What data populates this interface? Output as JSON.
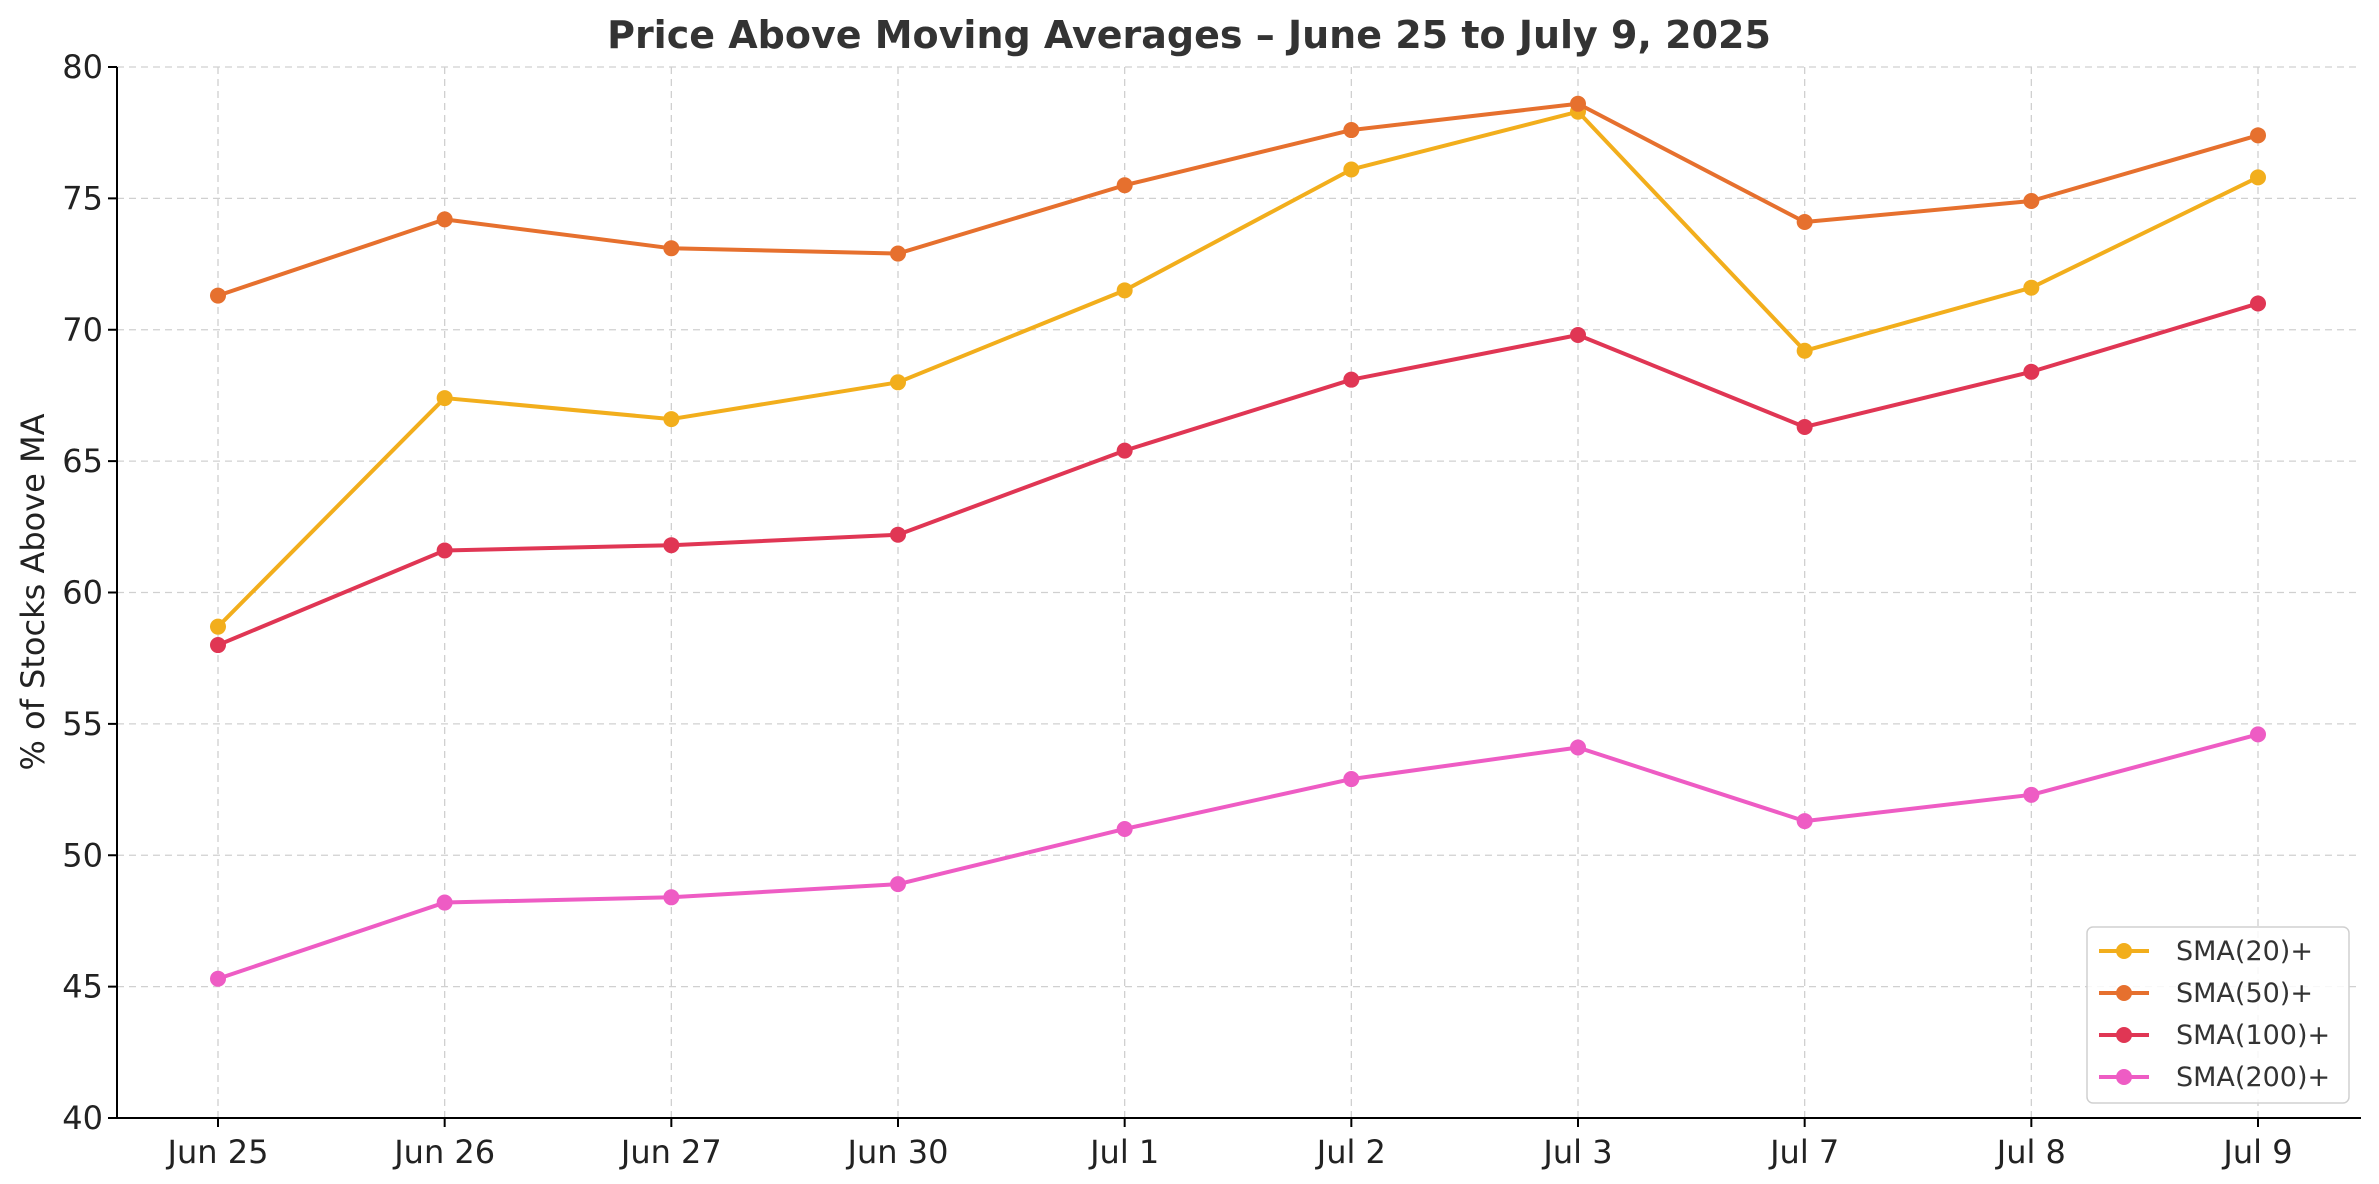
{
  "chart_data": {
    "type": "line",
    "title": "Price Above Moving Averages – June 25 to July 9, 2025",
    "xlabel": "",
    "ylabel": "% of Stocks Above MA",
    "categories": [
      "Jun 25",
      "Jun 26",
      "Jun 27",
      "Jun 30",
      "Jul 1",
      "Jul 2",
      "Jul 3",
      "Jul 7",
      "Jul 8",
      "Jul 9"
    ],
    "ylim": [
      40,
      80
    ],
    "yticks": [
      40,
      45,
      50,
      55,
      60,
      65,
      70,
      75,
      80
    ],
    "grid": true,
    "legend_position": "bottom-right",
    "series": [
      {
        "name": "SMA(20)+",
        "color": "#f2ae1c",
        "values": [
          58.7,
          67.4,
          66.6,
          68.0,
          71.5,
          76.1,
          78.3,
          69.2,
          71.6,
          75.8
        ]
      },
      {
        "name": "SMA(50)+",
        "color": "#e6702e",
        "values": [
          71.3,
          74.2,
          73.1,
          72.9,
          75.5,
          77.6,
          78.6,
          74.1,
          74.9,
          77.4
        ]
      },
      {
        "name": "SMA(100)+",
        "color": "#e03654",
        "values": [
          58.0,
          61.6,
          61.8,
          62.2,
          65.4,
          68.1,
          69.8,
          66.3,
          68.4,
          71.0
        ]
      },
      {
        "name": "SMA(200)+",
        "color": "#ee5cc4",
        "values": [
          45.3,
          48.2,
          48.4,
          48.9,
          51.0,
          52.9,
          54.1,
          51.3,
          52.3,
          54.6
        ]
      }
    ]
  }
}
